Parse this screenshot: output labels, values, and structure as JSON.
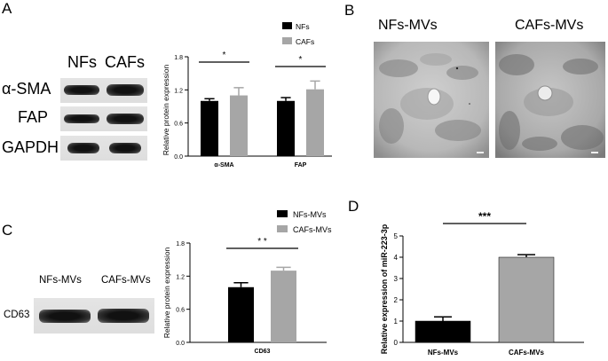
{
  "panels": {
    "a": {
      "letter": "A",
      "blot": {
        "lanes": [
          "NFs",
          "CAFs"
        ],
        "rows": [
          "α-SMA",
          "FAP",
          "GAPDH"
        ]
      }
    },
    "b": {
      "letter": "B",
      "images": [
        "NFs-MVs",
        "CAFs-MVs"
      ]
    },
    "c": {
      "letter": "C",
      "blot": {
        "lanes": [
          "NFs-MVs",
          "CAFs-MVs"
        ],
        "rows": [
          "CD63"
        ]
      }
    },
    "d": {
      "letter": "D"
    }
  },
  "chart_data": [
    {
      "id": "A",
      "type": "bar",
      "categories": [
        "α-SMA",
        "FAP"
      ],
      "series": [
        {
          "name": "NFs",
          "color": "#000000",
          "values": [
            1.0,
            1.0
          ],
          "errors": [
            0.04,
            0.06
          ]
        },
        {
          "name": "CAFs",
          "color": "#a6a6a6",
          "values": [
            1.1,
            1.21
          ],
          "errors": [
            0.14,
            0.15
          ]
        }
      ],
      "ylabel": "Relative protein expression",
      "xlabel": "",
      "ylim": [
        0,
        1.8
      ],
      "yticks": [
        "0.0",
        "0.6",
        "1.2",
        "1.8"
      ],
      "significance": [
        "*",
        "*"
      ],
      "legend": "top-right",
      "grid": false
    },
    {
      "id": "C",
      "type": "bar",
      "categories": [
        "CD63"
      ],
      "series": [
        {
          "name": "NFs-MVs",
          "color": "#000000",
          "values": [
            1.0
          ],
          "errors": [
            0.08
          ]
        },
        {
          "name": "CAFs-MVs",
          "color": "#a6a6a6",
          "values": [
            1.3
          ],
          "errors": [
            0.06
          ]
        }
      ],
      "ylabel": "Relative protein expression",
      "xlabel": "",
      "ylim": [
        0,
        1.8
      ],
      "yticks": [
        "0.0",
        "0.6",
        "1.2",
        "1.8"
      ],
      "significance": [
        "* *"
      ],
      "legend": "top-right",
      "grid": false
    },
    {
      "id": "D",
      "type": "bar",
      "categories": [
        "NFs-MVs",
        "CAFs-MVs"
      ],
      "values": [
        1.0,
        4.0
      ],
      "errors": [
        0.2,
        0.12
      ],
      "colors": [
        "#000000",
        "#a6a6a6"
      ],
      "ylabel": "Relative expression of miR-223-3p",
      "xlabel": "",
      "ylim": [
        0,
        5
      ],
      "yticks": [
        "0",
        "1",
        "2",
        "3",
        "4",
        "5"
      ],
      "significance": "***",
      "grid": false
    }
  ]
}
